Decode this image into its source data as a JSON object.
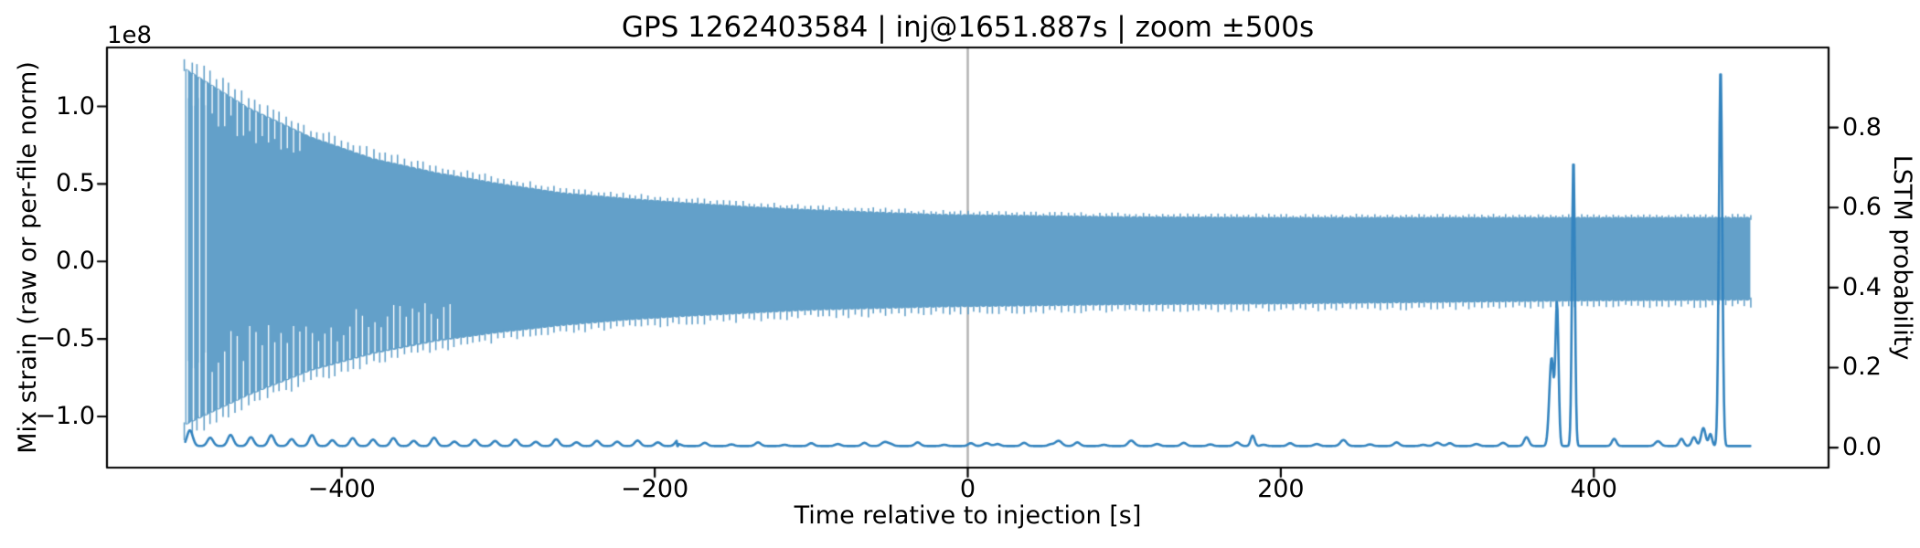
{
  "figure": {
    "background": "#ffffff"
  },
  "chart_data": {
    "type": "line",
    "title": "GPS 1262403584 | inj@1651.887s | zoom ±500s",
    "xlabel": "Time relative to injection [s]",
    "ylabel_left": "Mix strain (raw or per-file norm)",
    "ylabel_right": "LSTM probability",
    "y_offset_text": "1e8",
    "xlim": [
      -550,
      550
    ],
    "ylim_left_e8": [
      -1.33,
      1.38
    ],
    "ylim_right": [
      -0.05,
      1.0
    ],
    "xticks": [
      -400,
      -200,
      0,
      200,
      400
    ],
    "xtick_labels": [
      "−400",
      "−200",
      "0",
      "200",
      "400"
    ],
    "yticks_left": [
      1.0,
      0.5,
      0.0,
      -0.5,
      -1.0
    ],
    "ytick_left_labels": [
      "1.0",
      "0.5",
      "0.0",
      "−0.5",
      "−1.0"
    ],
    "yticks_right": [
      0.0,
      0.2,
      0.4,
      0.6,
      0.8
    ],
    "ytick_right_labels": [
      "0.0",
      "0.2",
      "0.4",
      "0.6",
      "0.8"
    ],
    "grid": false,
    "legend": "none",
    "injection_vline": {
      "t": 0,
      "color": "#b3b3b3",
      "width": 2.5
    },
    "series": [
      {
        "name": "mix-strain",
        "axis": "left",
        "color": "#63a0c9",
        "t_range": [
          -500,
          500
        ],
        "envelope": {
          "t": [
            -500,
            -460,
            -420,
            -380,
            -340,
            -300,
            -260,
            -220,
            -180,
            -140,
            -100,
            -60,
            -20,
            20,
            100,
            200,
            300,
            400,
            500
          ],
          "upper_e8": [
            1.24,
            0.99,
            0.8,
            0.66,
            0.57,
            0.5,
            0.44,
            0.405,
            0.375,
            0.35,
            0.33,
            0.315,
            0.3,
            0.295,
            0.285,
            0.28,
            0.28,
            0.28,
            0.28
          ],
          "lower_e8": [
            -1.05,
            -0.86,
            -0.7,
            -0.59,
            -0.51,
            -0.455,
            -0.41,
            -0.375,
            -0.35,
            -0.33,
            -0.31,
            -0.3,
            -0.29,
            -0.285,
            -0.275,
            -0.27,
            -0.26,
            -0.25,
            -0.245
          ]
        },
        "comb": {
          "period_s": 4.0,
          "up_base_e8": 0.02,
          "up_amp_e8": 0.06,
          "up_tau_s": 200,
          "down_base_e8": 0.04,
          "down_amp_e8": 0.04,
          "down_tau_s": 240,
          "scallop_e8": 0.008,
          "full_gap_until_t": -486,
          "bottom_gap_until_t": -332,
          "top_gap_until_t": -425
        }
      },
      {
        "name": "lstm-probability",
        "axis": "right",
        "color": "#3484bf",
        "line_width": 2.6,
        "baseline": 0.004,
        "periodic_bumps": {
          "t_start": -497,
          "t_end": -192,
          "period_s": 13,
          "sigma_s": 2.6,
          "h_base": 0.01,
          "h_amp": 0.022,
          "h_tau_s": 130,
          "h_pattern": [
            1.25,
            0.7,
            1.0,
            0.85,
            1.1,
            0.75
          ]
        },
        "minor_bumps": {
          "t_start": -185,
          "t_end": 345,
          "period_s": 17,
          "sigma_s": 2.5,
          "h_pattern": [
            0.005,
            0.008,
            0.004,
            0.009,
            0.003,
            0.007
          ]
        },
        "peaks": [
          [
            -53,
            0.01,
            3
          ],
          [
            12,
            0.007,
            3
          ],
          [
            58,
            0.013,
            3
          ],
          [
            105,
            0.007,
            3
          ],
          [
            182,
            0.026,
            1.8
          ],
          [
            240,
            0.007,
            3
          ],
          [
            300,
            0.008,
            3
          ],
          [
            357,
            0.022,
            2.2
          ],
          [
            373,
            0.22,
            2.0
          ],
          [
            376.5,
            0.35,
            1.4
          ],
          [
            387,
            0.72,
            1.3
          ],
          [
            413,
            0.018,
            2
          ],
          [
            441,
            0.012,
            2.5
          ],
          [
            456,
            0.018,
            2
          ],
          [
            464,
            0.022,
            2
          ],
          [
            470,
            0.045,
            2
          ],
          [
            474.5,
            0.03,
            1.5
          ],
          [
            481,
            0.945,
            1.5
          ]
        ]
      }
    ]
  },
  "axes_style": {
    "spine_color": "#000000",
    "spine_width": 2.2,
    "tick_len": 9,
    "tick_width": 2.2
  }
}
